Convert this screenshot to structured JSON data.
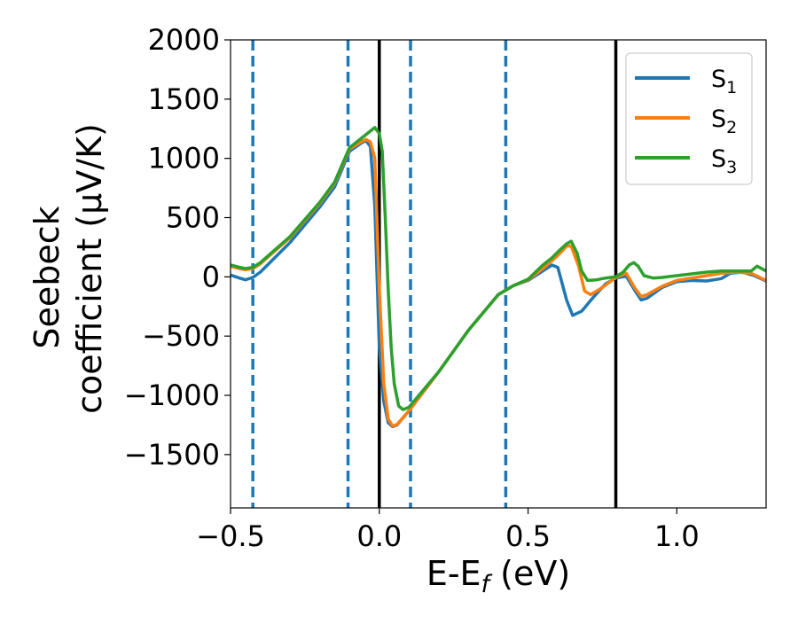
{
  "chart_data": {
    "type": "line",
    "xlabel": "E-E",
    "xlabel_sub": "f",
    "xlabel_unit": " (eV)",
    "ylabel_line1": "Seebeck",
    "ylabel_line2": "coefficient  (μV/K)",
    "xlim": [
      -0.5,
      1.3
    ],
    "ylim": [
      -1950,
      2000
    ],
    "x_ticks": [
      -0.5,
      0.0,
      0.5,
      1.0
    ],
    "x_tick_labels": [
      "−0.5",
      "0.0",
      "0.5",
      "1.0"
    ],
    "y_ticks": [
      -1500,
      -1000,
      -500,
      0,
      500,
      1000,
      1500,
      2000
    ],
    "y_tick_labels": [
      "−1500",
      "−1000",
      "−500",
      "0",
      "500",
      "1000",
      "1500",
      "2000"
    ],
    "grid": false,
    "legend_position": "top-right",
    "dashed_vlines": {
      "x": [
        -0.425,
        -0.105,
        0.105,
        0.425
      ],
      "color": "#1f77b4"
    },
    "solid_vlines": {
      "x": [
        0.0,
        0.795
      ],
      "color": "#000000"
    },
    "series": [
      {
        "name": "S",
        "name_sub": "1",
        "color": "#1f77b4",
        "points": [
          [
            -0.5,
            15
          ],
          [
            -0.47,
            -10
          ],
          [
            -0.45,
            -25
          ],
          [
            -0.425,
            -5
          ],
          [
            -0.4,
            40
          ],
          [
            -0.3,
            290
          ],
          [
            -0.2,
            590
          ],
          [
            -0.15,
            760
          ],
          [
            -0.1,
            1060
          ],
          [
            -0.06,
            1130
          ],
          [
            -0.045,
            1150
          ],
          [
            -0.03,
            1100
          ],
          [
            -0.015,
            600
          ],
          [
            0.0,
            -600
          ],
          [
            0.015,
            -1050
          ],
          [
            0.03,
            -1230
          ],
          [
            0.045,
            -1265
          ],
          [
            0.06,
            -1250
          ],
          [
            0.1,
            -1130
          ],
          [
            0.2,
            -800
          ],
          [
            0.3,
            -450
          ],
          [
            0.4,
            -150
          ],
          [
            0.45,
            -75
          ],
          [
            0.5,
            -30
          ],
          [
            0.55,
            50
          ],
          [
            0.58,
            100
          ],
          [
            0.6,
            80
          ],
          [
            0.63,
            -200
          ],
          [
            0.65,
            -325
          ],
          [
            0.68,
            -290
          ],
          [
            0.72,
            -170
          ],
          [
            0.76,
            -60
          ],
          [
            0.795,
            -10
          ],
          [
            0.83,
            5
          ],
          [
            0.86,
            -120
          ],
          [
            0.88,
            -195
          ],
          [
            0.9,
            -180
          ],
          [
            0.95,
            -90
          ],
          [
            1.0,
            -40
          ],
          [
            1.05,
            -30
          ],
          [
            1.1,
            -35
          ],
          [
            1.15,
            -15
          ],
          [
            1.18,
            30
          ],
          [
            1.22,
            40
          ],
          [
            1.26,
            10
          ],
          [
            1.3,
            -35
          ]
        ]
      },
      {
        "name": "S",
        "name_sub": "2",
        "color": "#ff7f0e",
        "points": [
          [
            -0.5,
            90
          ],
          [
            -0.47,
            70
          ],
          [
            -0.45,
            60
          ],
          [
            -0.425,
            70
          ],
          [
            -0.4,
            110
          ],
          [
            -0.3,
            330
          ],
          [
            -0.2,
            620
          ],
          [
            -0.15,
            790
          ],
          [
            -0.1,
            1080
          ],
          [
            -0.06,
            1140
          ],
          [
            -0.045,
            1160
          ],
          [
            -0.03,
            1140
          ],
          [
            -0.015,
            1000
          ],
          [
            0.0,
            -100
          ],
          [
            0.015,
            -900
          ],
          [
            0.03,
            -1200
          ],
          [
            0.045,
            -1260
          ],
          [
            0.06,
            -1245
          ],
          [
            0.1,
            -1130
          ],
          [
            0.2,
            -800
          ],
          [
            0.3,
            -450
          ],
          [
            0.4,
            -150
          ],
          [
            0.45,
            -75
          ],
          [
            0.5,
            -25
          ],
          [
            0.55,
            70
          ],
          [
            0.6,
            180
          ],
          [
            0.63,
            260
          ],
          [
            0.645,
            260
          ],
          [
            0.67,
            90
          ],
          [
            0.69,
            -120
          ],
          [
            0.71,
            -150
          ],
          [
            0.75,
            -90
          ],
          [
            0.795,
            -5
          ],
          [
            0.83,
            30
          ],
          [
            0.86,
            -100
          ],
          [
            0.88,
            -165
          ],
          [
            0.9,
            -150
          ],
          [
            0.95,
            -80
          ],
          [
            1.0,
            -30
          ],
          [
            1.05,
            -10
          ],
          [
            1.1,
            10
          ],
          [
            1.15,
            30
          ],
          [
            1.2,
            40
          ],
          [
            1.25,
            30
          ],
          [
            1.3,
            -30
          ]
        ]
      },
      {
        "name": "S",
        "name_sub": "3",
        "color": "#2ca02c",
        "points": [
          [
            -0.5,
            100
          ],
          [
            -0.47,
            80
          ],
          [
            -0.45,
            70
          ],
          [
            -0.425,
            80
          ],
          [
            -0.4,
            120
          ],
          [
            -0.3,
            340
          ],
          [
            -0.2,
            630
          ],
          [
            -0.15,
            800
          ],
          [
            -0.1,
            1090
          ],
          [
            -0.05,
            1190
          ],
          [
            -0.03,
            1230
          ],
          [
            -0.015,
            1260
          ],
          [
            0.0,
            1210
          ],
          [
            0.01,
            1060
          ],
          [
            0.02,
            500
          ],
          [
            0.03,
            -100
          ],
          [
            0.04,
            -600
          ],
          [
            0.05,
            -900
          ],
          [
            0.065,
            -1090
          ],
          [
            0.08,
            -1120
          ],
          [
            0.1,
            -1100
          ],
          [
            0.2,
            -800
          ],
          [
            0.3,
            -450
          ],
          [
            0.4,
            -150
          ],
          [
            0.45,
            -75
          ],
          [
            0.5,
            -20
          ],
          [
            0.55,
            100
          ],
          [
            0.58,
            160
          ],
          [
            0.6,
            210
          ],
          [
            0.63,
            280
          ],
          [
            0.645,
            300
          ],
          [
            0.665,
            200
          ],
          [
            0.68,
            50
          ],
          [
            0.7,
            -30
          ],
          [
            0.73,
            -25
          ],
          [
            0.76,
            -10
          ],
          [
            0.795,
            0
          ],
          [
            0.82,
            40
          ],
          [
            0.84,
            100
          ],
          [
            0.855,
            120
          ],
          [
            0.87,
            90
          ],
          [
            0.89,
            10
          ],
          [
            0.92,
            -10
          ],
          [
            0.95,
            -5
          ],
          [
            1.0,
            10
          ],
          [
            1.05,
            25
          ],
          [
            1.1,
            40
          ],
          [
            1.15,
            50
          ],
          [
            1.2,
            50
          ],
          [
            1.25,
            50
          ],
          [
            1.27,
            90
          ],
          [
            1.3,
            50
          ]
        ]
      }
    ]
  }
}
